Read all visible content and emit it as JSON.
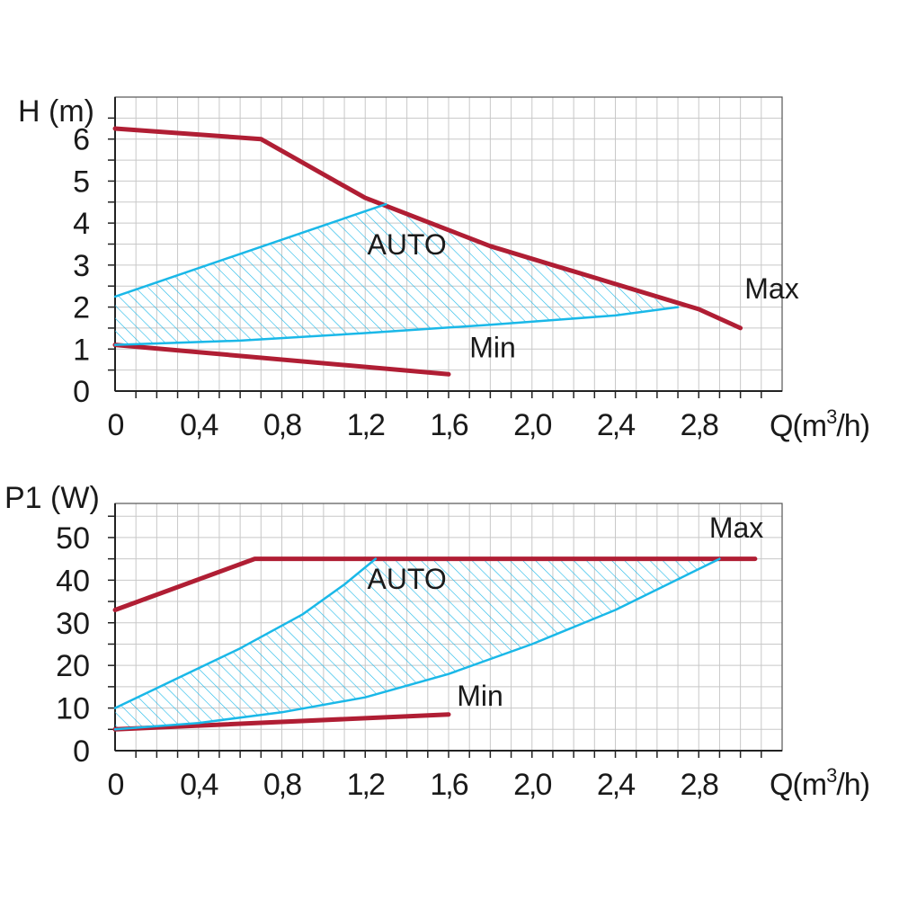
{
  "colors": {
    "max_min_curve": "#b01e34",
    "auto_curve": "#1ab8e8",
    "grid": "#c8c8c8",
    "axis": "#222222",
    "text": "#1a1a1a"
  },
  "chart_data": [
    {
      "type": "line",
      "ylabel": "H (m)",
      "xlabel": "Q(m³/h)",
      "xlabel_parts": {
        "pre": "Q(m",
        "sup": "3",
        "post": "/h)"
      },
      "xlim": [
        0,
        3.2
      ],
      "ylim": [
        0,
        7
      ],
      "x_ticks": [
        0,
        0.4,
        0.8,
        1.2,
        1.6,
        2.0,
        2.4,
        2.8
      ],
      "x_tick_labels": [
        "0",
        "0,4",
        "0,8",
        "1,2",
        "1,6",
        "2,0",
        "2,4",
        "2,8"
      ],
      "y_ticks": [
        0,
        1,
        2,
        3,
        4,
        5,
        6
      ],
      "y_tick_labels": [
        "0",
        "1",
        "2",
        "3",
        "4",
        "5",
        "6"
      ],
      "grid": true,
      "series": [
        {
          "name": "Max",
          "style": "max",
          "x": [
            0,
            0.7,
            1.2,
            1.8,
            2.4,
            2.8,
            3.0
          ],
          "y": [
            6.25,
            6.0,
            4.6,
            3.45,
            2.55,
            1.95,
            1.5
          ]
        },
        {
          "name": "Min",
          "style": "min",
          "x": [
            0,
            1.6
          ],
          "y": [
            1.1,
            0.4
          ]
        },
        {
          "name": "",
          "style": "auto",
          "x": [
            0,
            1.3
          ],
          "y": [
            2.25,
            4.45
          ]
        },
        {
          "name": "",
          "style": "auto",
          "x": [
            0,
            0.6,
            1.2,
            1.8,
            2.4,
            2.7
          ],
          "y": [
            1.1,
            1.2,
            1.38,
            1.58,
            1.8,
            2.0
          ]
        }
      ],
      "auto_region": {
        "label": "AUTO",
        "label_at": [
          1.4,
          3.25
        ],
        "polygon": [
          [
            0,
            2.25
          ],
          [
            1.3,
            4.45
          ],
          [
            1.8,
            3.45
          ],
          [
            2.4,
            2.55
          ],
          [
            2.7,
            2.0
          ],
          [
            2.4,
            1.8
          ],
          [
            1.8,
            1.58
          ],
          [
            1.2,
            1.38
          ],
          [
            0.6,
            1.2
          ],
          [
            0,
            1.1
          ]
        ]
      },
      "annotations": [
        {
          "text": "Max",
          "at": [
            3.02,
            2.2
          ]
        },
        {
          "text": "Min",
          "at": [
            1.7,
            0.8
          ]
        }
      ]
    },
    {
      "type": "line",
      "ylabel": "P1 (W)",
      "xlabel": "Q(m³/h)",
      "xlabel_parts": {
        "pre": "Q(m",
        "sup": "3",
        "post": "/h)"
      },
      "xlim": [
        0,
        3.2
      ],
      "ylim": [
        0,
        58
      ],
      "x_ticks": [
        0,
        0.4,
        0.8,
        1.2,
        1.6,
        2.0,
        2.4,
        2.8
      ],
      "x_tick_labels": [
        "0",
        "0,4",
        "0,8",
        "1,2",
        "1,6",
        "2,0",
        "2,4",
        "2,8"
      ],
      "y_ticks": [
        0,
        10,
        20,
        30,
        40,
        50
      ],
      "y_tick_labels": [
        "0",
        "10",
        "20",
        "30",
        "40",
        "50"
      ],
      "grid": true,
      "series": [
        {
          "name": "Max",
          "style": "max",
          "x": [
            0,
            0.67,
            3.07
          ],
          "y": [
            33,
            45,
            45
          ]
        },
        {
          "name": "Min",
          "style": "min",
          "x": [
            0,
            1.6
          ],
          "y": [
            5,
            8.5
          ]
        },
        {
          "name": "",
          "style": "auto",
          "x": [
            0,
            0.3,
            0.6,
            0.9,
            1.1,
            1.25
          ],
          "y": [
            10,
            17,
            24,
            32,
            39,
            45
          ]
        },
        {
          "name": "",
          "style": "auto",
          "x": [
            0,
            0.4,
            0.8,
            1.2,
            1.6,
            2.0,
            2.4,
            2.9
          ],
          "y": [
            5,
            6.5,
            9,
            12.5,
            18,
            25,
            33,
            45
          ]
        }
      ],
      "auto_region": {
        "label": "AUTO",
        "label_at": [
          1.4,
          38
        ],
        "polygon": [
          [
            0,
            10
          ],
          [
            0.3,
            17
          ],
          [
            0.6,
            24
          ],
          [
            0.9,
            32
          ],
          [
            1.1,
            39
          ],
          [
            1.25,
            45
          ],
          [
            2.9,
            45
          ],
          [
            2.4,
            33
          ],
          [
            2.0,
            25
          ],
          [
            1.6,
            18
          ],
          [
            1.2,
            12.5
          ],
          [
            0.8,
            9
          ],
          [
            0.4,
            6.5
          ],
          [
            0,
            5
          ]
        ]
      },
      "annotations": [
        {
          "text": "Max",
          "at": [
            2.85,
            50
          ]
        },
        {
          "text": "Min",
          "at": [
            1.64,
            10.5
          ]
        }
      ]
    }
  ]
}
